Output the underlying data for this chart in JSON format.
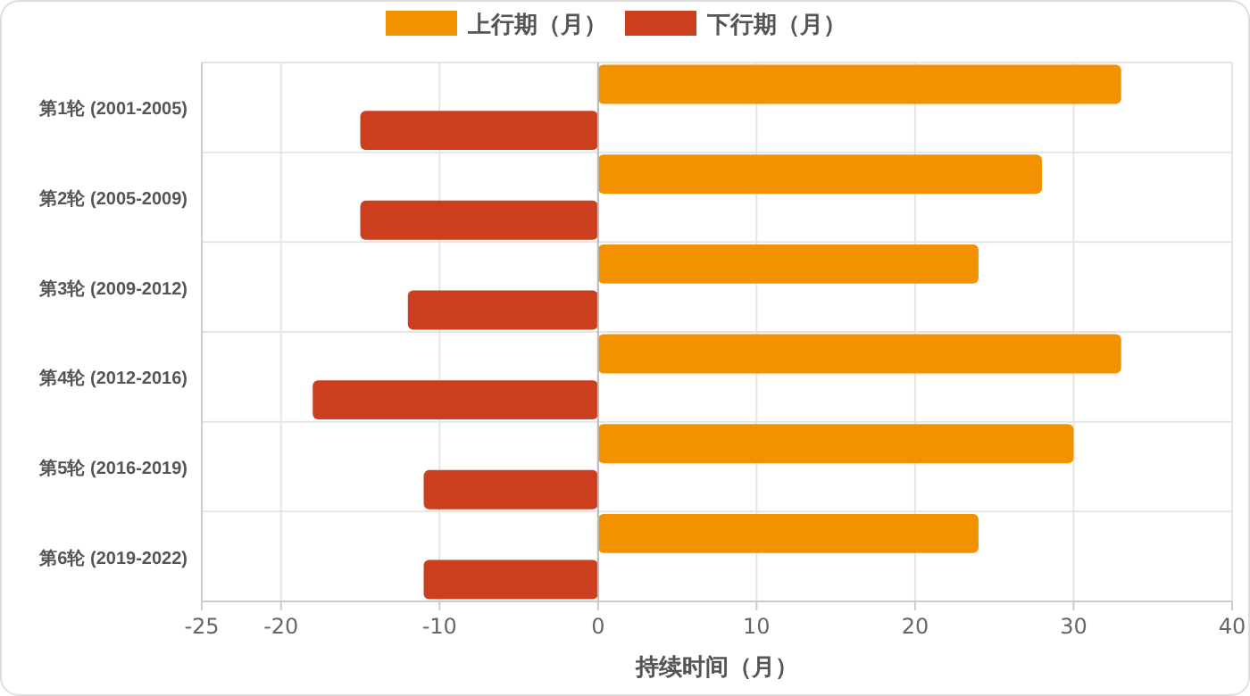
{
  "chart_data": {
    "type": "bar",
    "orientation": "horizontal",
    "xlabel": "持续时间（月）",
    "categories": [
      "第1轮 (2001-2005)",
      "第2轮 (2005-2009)",
      "第3轮 (2009-2012)",
      "第4轮 (2012-2016)",
      "第5轮 (2016-2019)",
      "第6轮 (2019-2022)"
    ],
    "series": [
      {
        "name": "上行期（月）",
        "color": "#f39200",
        "values": [
          33,
          28,
          24,
          33,
          30,
          24
        ]
      },
      {
        "name": "下行期（月）",
        "color": "#cb3f1f",
        "values": [
          -15,
          -15,
          -12,
          -18,
          -11,
          -11
        ]
      }
    ],
    "xlim": [
      -25,
      40
    ],
    "xticks": [
      -25,
      -20,
      -10,
      0,
      10,
      20,
      30,
      40
    ],
    "grid": true,
    "legend": "top"
  }
}
